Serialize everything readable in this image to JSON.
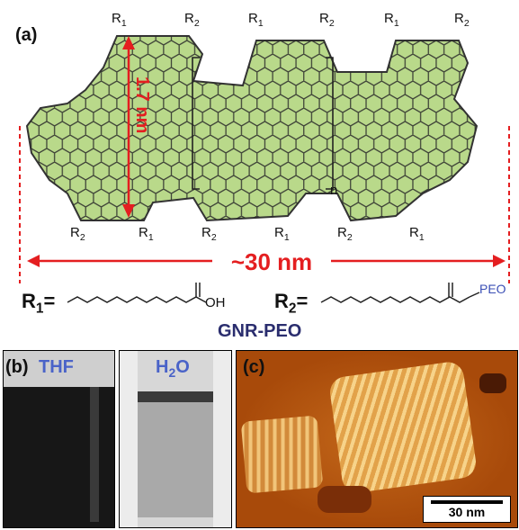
{
  "panel_a": {
    "label": "(a)",
    "height_label": "1.7 nm",
    "length_label": "~30 nm",
    "repeat_subscript": "n",
    "r_labels_top": [
      "R1",
      "R2",
      "R1",
      "R2",
      "R1",
      "R2"
    ],
    "r_labels_bottom": [
      "R2",
      "R1",
      "R2",
      "R1",
      "R2",
      "R1"
    ],
    "r1_formula_label": "R1=",
    "r1_end_group": "OH",
    "r2_formula_label": "R2=",
    "r2_end_group": "PEO",
    "compound_name": "GNR-PEO",
    "colors": {
      "ribbon_fill": "#b9d98a",
      "annotation": "#e41e20",
      "name": "#2a2d6e",
      "peo": "#3b4fb5"
    }
  },
  "panel_b": {
    "label": "(b)",
    "left_vial_label": "THF",
    "right_vial_label": "H2O",
    "colors": {
      "vial_label": "#4a63c8"
    }
  },
  "panel_c": {
    "label": "(c)",
    "scale_bar_label": "30 nm",
    "colors": {
      "background": "#b85a10",
      "bright": "#f7d38a"
    }
  }
}
